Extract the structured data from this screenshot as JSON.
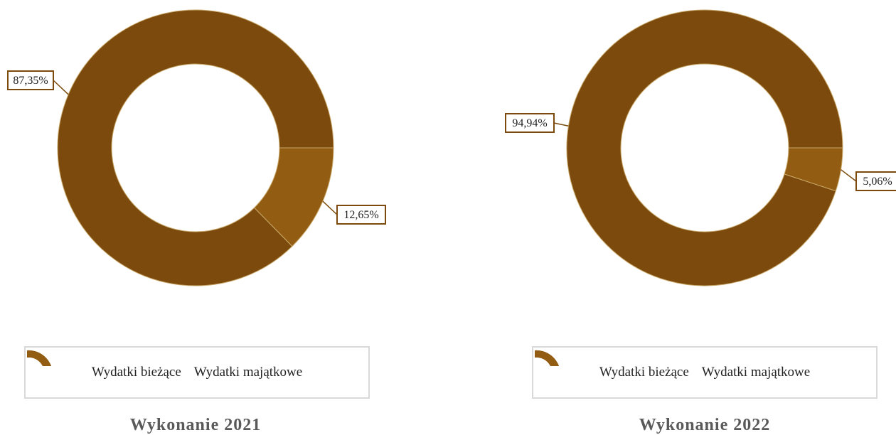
{
  "colors": {
    "biezace": "#7b4a0c",
    "majatkowe": "#925d12",
    "label_border": "#7b4a0c",
    "caption": "#595959"
  },
  "chart_data": [
    {
      "type": "pie",
      "title": "Wykonanie 2021",
      "slices": [
        {
          "name": "Wydatki bieżące",
          "value": 87.35,
          "label": "87,35%"
        },
        {
          "name": "Wydatki majątkowe",
          "value": 12.65,
          "label": "12,65%"
        }
      ],
      "legend": [
        "Wydatki bieżące",
        "Wydatki majątkowe"
      ],
      "legend_position": "bottom",
      "donut": true
    },
    {
      "type": "pie",
      "title": "Wykonanie 2022",
      "slices": [
        {
          "name": "Wydatki bieżące",
          "value": 94.94,
          "label": "94,94%"
        },
        {
          "name": "Wydatki majątkowe",
          "value": 5.06,
          "label": "5,06%"
        }
      ],
      "legend": [
        "Wydatki bieżące",
        "Wydatki majątkowe"
      ],
      "legend_position": "bottom",
      "donut": true
    }
  ]
}
